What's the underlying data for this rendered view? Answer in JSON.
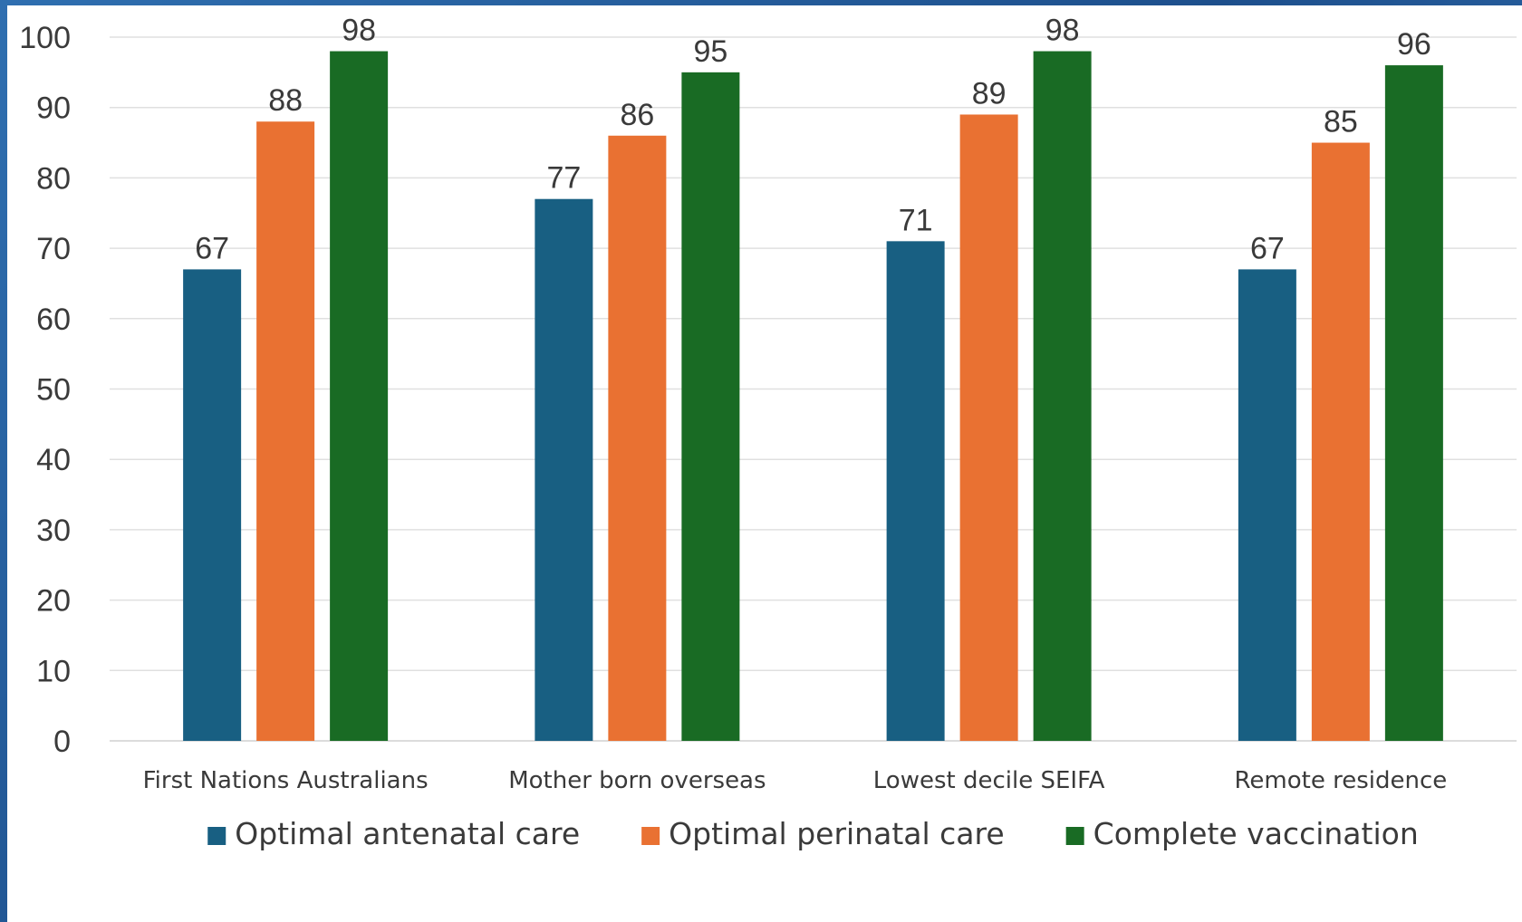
{
  "chart_data": {
    "type": "bar",
    "title": "",
    "xlabel": "",
    "ylabel": "",
    "ylim": [
      0,
      100
    ],
    "yticks": [
      0,
      10,
      20,
      30,
      40,
      50,
      60,
      70,
      80,
      90,
      100
    ],
    "grid": true,
    "legend_position": "bottom",
    "categories": [
      "First Nations Australians",
      "Mother born overseas",
      "Lowest decile SEIFA",
      "Remote residence"
    ],
    "series": [
      {
        "name": "Optimal antenatal care",
        "color": "#185f82",
        "values": [
          67,
          77,
          71,
          67
        ]
      },
      {
        "name": "Optimal perinatal care",
        "color": "#e97132",
        "values": [
          88,
          86,
          89,
          85
        ]
      },
      {
        "name": "Complete vaccination",
        "color": "#196b24",
        "values": [
          98,
          95,
          98,
          96
        ]
      }
    ]
  }
}
